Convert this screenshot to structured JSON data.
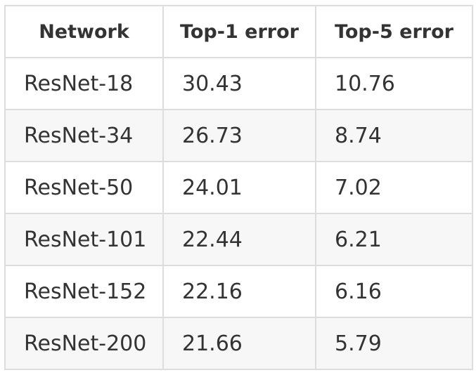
{
  "table": {
    "headers": [
      "Network",
      "Top-1 error",
      "Top-5 error"
    ],
    "rows": [
      [
        "ResNet-18",
        "30.43",
        "10.76"
      ],
      [
        "ResNet-34",
        "26.73",
        "8.74"
      ],
      [
        "ResNet-50",
        "24.01",
        "7.02"
      ],
      [
        "ResNet-101",
        "22.44",
        "6.21"
      ],
      [
        "ResNet-152",
        "22.16",
        "6.16"
      ],
      [
        "ResNet-200",
        "21.66",
        "5.79"
      ]
    ]
  }
}
